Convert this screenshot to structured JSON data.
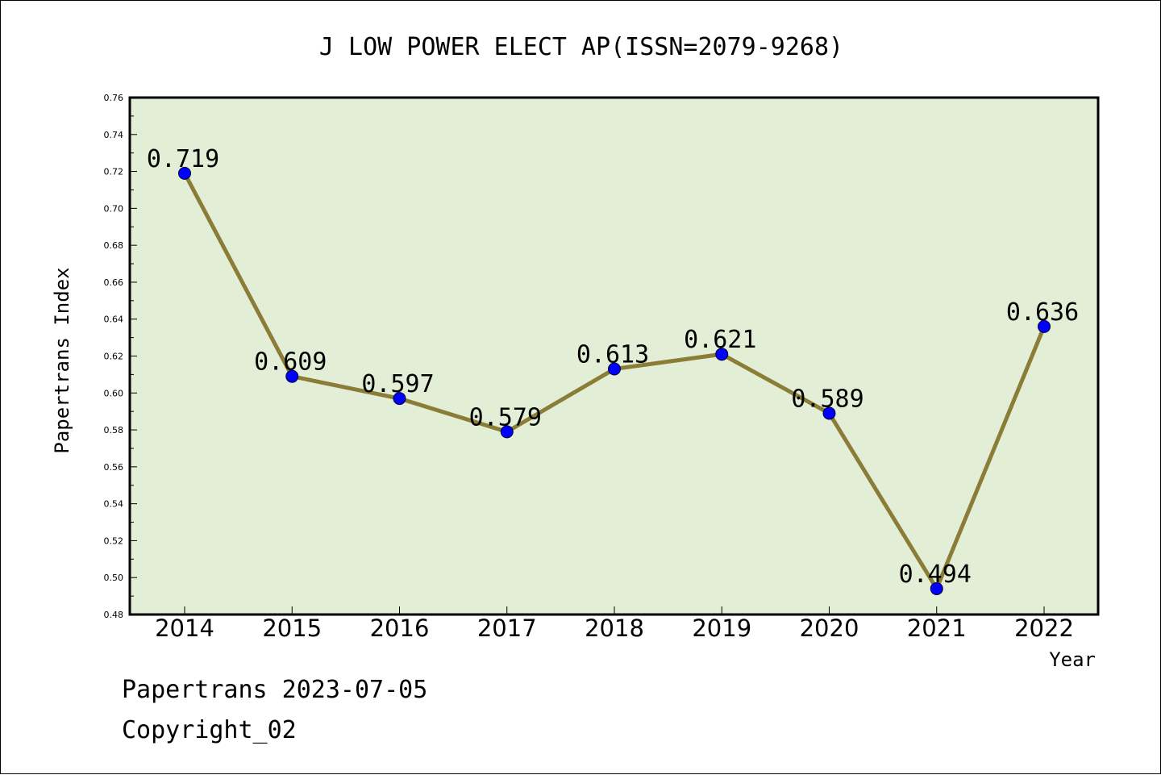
{
  "chart_data": {
    "type": "line",
    "title": "J LOW POWER ELECT AP(ISSN=2079-9268)",
    "xlabel": "Year",
    "ylabel": "Papertrans Index",
    "categories": [
      "2014",
      "2015",
      "2016",
      "2017",
      "2018",
      "2019",
      "2020",
      "2021",
      "2022"
    ],
    "values": [
      0.719,
      0.609,
      0.597,
      0.579,
      0.613,
      0.621,
      0.589,
      0.494,
      0.636
    ],
    "data_labels": [
      "0.719",
      "0.609",
      "0.597",
      "0.579",
      "0.613",
      "0.621",
      "0.589",
      "0.494",
      "0.636"
    ],
    "ylim": [
      0.48,
      0.76
    ],
    "yticks": [
      "0.48",
      "0.50",
      "0.52",
      "0.54",
      "0.56",
      "0.58",
      "0.60",
      "0.62",
      "0.64",
      "0.66",
      "0.68",
      "0.70",
      "0.72",
      "0.74",
      "0.76"
    ],
    "grid": false,
    "colors": {
      "plot_background": "#e2efd6",
      "line": "#8b7d37",
      "marker": "#0000ff"
    }
  },
  "footer": {
    "date_line": "Papertrans 2023-07-05",
    "copyright": "Copyright_02"
  }
}
